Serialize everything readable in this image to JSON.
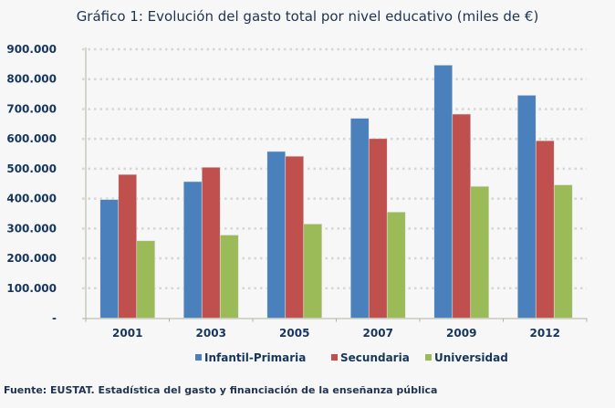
{
  "chart_data": {
    "type": "bar",
    "title": "Gráfico 1: Evolución del gasto total por nivel educativo (miles de €)",
    "categories": [
      "2001",
      "2003",
      "2005",
      "2007",
      "2009",
      "2012"
    ],
    "series": [
      {
        "name": "Infantil-Primaria",
        "color": "#4a81bd",
        "values": [
          397000,
          457000,
          558000,
          669000,
          847000,
          746000
        ]
      },
      {
        "name": "Secundaria",
        "color": "#c0504d",
        "values": [
          481000,
          505000,
          542000,
          601000,
          683000,
          594000
        ]
      },
      {
        "name": "Universidad",
        "color": "#9bbb59",
        "values": [
          259000,
          278000,
          315000,
          355000,
          441000,
          446000
        ]
      }
    ],
    "ylim": [
      0,
      900000
    ],
    "yticks": [
      0,
      100000,
      200000,
      300000,
      400000,
      500000,
      600000,
      700000,
      800000,
      900000
    ],
    "ytick_labels": [
      "-",
      "100.000",
      "200.000",
      "300.000",
      "400.000",
      "500.000",
      "600.000",
      "700.000",
      "800.000",
      "900.000"
    ],
    "grid": true,
    "legend": "bottom"
  },
  "source": "Fuente: EUSTAT. Estadística del gasto y financiación de la enseñanza pública"
}
